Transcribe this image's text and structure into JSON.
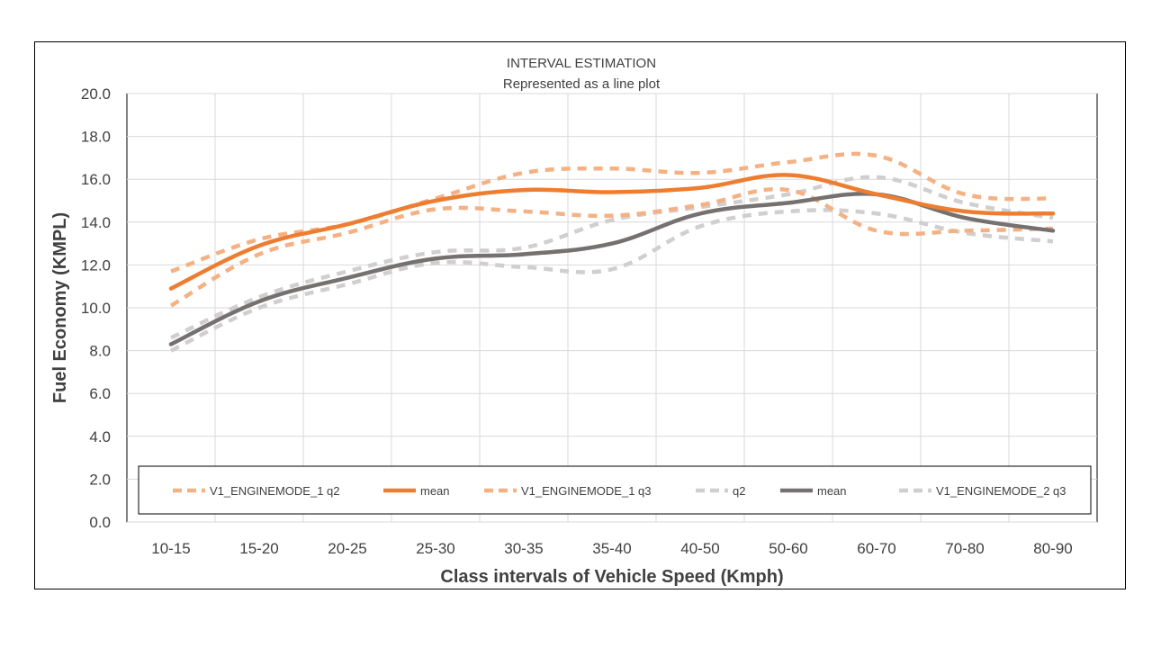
{
  "chart_data": {
    "type": "line",
    "title": "INTERVAL ESTIMATION",
    "subtitle": "Represented as a line plot",
    "xlabel": "Class intervals of Vehicle Speed (Kmph)",
    "ylabel": "Fuel Economy (KMPL)",
    "ylim": [
      0,
      20
    ],
    "yticks": [
      "0.0",
      "2.0",
      "4.0",
      "6.0",
      "8.0",
      "10.0",
      "12.0",
      "14.0",
      "16.0",
      "18.0",
      "20.0"
    ],
    "grid": true,
    "legend_position": "bottom (inside plot)",
    "categories": [
      "10-15",
      "15-20",
      "20-25",
      "25-30",
      "30-35",
      "35-40",
      "40-50",
      "50-60",
      "60-70",
      "70-80",
      "80-90"
    ],
    "series": [
      {
        "name": "V1_ENGINEMODE_1 q2",
        "color": "#F4B183",
        "style": "dashed",
        "values": [
          11.7,
          13.2,
          13.9,
          15.1,
          16.3,
          16.5,
          16.3,
          16.8,
          17.1,
          15.3,
          15.1
        ]
      },
      {
        "name": "mean",
        "color": "#ED7D31",
        "style": "solid",
        "values": [
          10.9,
          12.9,
          13.9,
          15.0,
          15.5,
          15.4,
          15.6,
          16.2,
          15.3,
          14.5,
          14.4
        ]
      },
      {
        "name": "V1_ENGINEMODE_1 q3",
        "color": "#F4B183",
        "style": "dashed",
        "values": [
          10.1,
          12.5,
          13.5,
          14.6,
          14.5,
          14.3,
          14.8,
          15.5,
          13.6,
          13.6,
          13.7
        ]
      },
      {
        "name": "q2",
        "color": "#D0CECE",
        "style": "dashed",
        "values": [
          8.6,
          10.5,
          11.7,
          12.6,
          12.8,
          14.1,
          14.7,
          15.3,
          16.1,
          14.9,
          14.2
        ]
      },
      {
        "name": "mean",
        "color": "#767171",
        "style": "solid",
        "values": [
          8.3,
          10.3,
          11.4,
          12.3,
          12.5,
          13.0,
          14.4,
          14.9,
          15.3,
          14.2,
          13.6
        ]
      },
      {
        "name": "V1_ENGINEMODE_2 q3",
        "color": "#D0CECE",
        "style": "dashed",
        "values": [
          8.0,
          10.0,
          11.1,
          12.1,
          11.9,
          11.8,
          13.8,
          14.5,
          14.4,
          13.5,
          13.1
        ]
      }
    ]
  }
}
